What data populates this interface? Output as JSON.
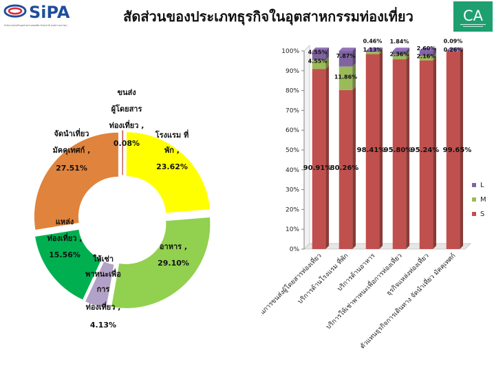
{
  "header": {
    "title": "สัดส่วนของประเภทธุรกิจในอุตสาหกรรมท่องเที่ยว",
    "logo_left_text": "SiPA",
    "logo_left_subtext": "สำนักงานส่งเสริมอุตสาหกรรมซอฟต์แวร์แห่งชาติ (องค์การมหาชน)",
    "logo_right_text": "CA"
  },
  "chart_data": [
    {
      "type": "pie",
      "variant": "donut-exploded",
      "title": "",
      "slices": [
        {
          "label": "โรงแรม ที่พัก",
          "value": 23.62,
          "value_label": "23.62%",
          "color": "#ffff00"
        },
        {
          "label": "อาหาร",
          "value": 29.1,
          "value_label": "29.10%",
          "color": "#92d050"
        },
        {
          "label": "ให้เช่าพาหนะเพื่อการท่องเที่ยว",
          "value": 4.13,
          "value_label": "4.13%",
          "color": "#b3a2c7"
        },
        {
          "label": "แหล่งท่องเที่ยว",
          "value": 15.56,
          "value_label": "15.56%",
          "color": "#00b050"
        },
        {
          "label": "จัดนำเที่ยว มัคคุเทศก์",
          "value": 27.51,
          "value_label": "27.51%",
          "color": "#e0833c"
        },
        {
          "label": "ขนส่งผู้โดยสารท่องเที่ยว",
          "value": 0.08,
          "value_label": "0.08%",
          "color": "#c0504d"
        }
      ]
    },
    {
      "type": "bar",
      "variant": "stacked-100-3d",
      "title": "",
      "categories": [
        "บริการด้านการขนส่งผู้โดยสารท่องเที่ยว",
        "บริการด้านโรงแรม ที่พัก",
        "บริการด้านอาหาร",
        "บริการให้เช่าพาหนะเพื่อการท่องเที่ยว",
        "ธุรกิจแหล่งท่องเที่ยว",
        "ตัวแทนธุรกิจการเดินทาง จัดนำเที่ยว มัคคุเทศก์"
      ],
      "series": [
        {
          "name": "S",
          "color": "#c0504d",
          "values": [
            90.91,
            80.26,
            98.41,
            95.8,
            95.24,
            99.65
          ],
          "labels": [
            "90.91%",
            "80.26%",
            "98.41%",
            "95.80%",
            "95.24%",
            "99.65%"
          ]
        },
        {
          "name": "M",
          "color": "#9bbb59",
          "values": [
            4.55,
            11.86,
            1.13,
            2.36,
            2.16,
            0.26
          ],
          "labels": [
            "4.55%",
            "11.86%",
            "1.13%",
            "2.36%",
            "2.16%",
            "0.26%"
          ]
        },
        {
          "name": "L",
          "color": "#8064a2",
          "values": [
            4.55,
            7.87,
            0.46,
            1.84,
            2.6,
            0.09
          ],
          "labels": [
            "4.55%",
            "7.87%",
            "0.46%",
            "1.84%",
            "2.60%",
            "0.09%"
          ]
        }
      ],
      "yticks": [
        "0%",
        "10%",
        "20%",
        "30%",
        "40%",
        "50%",
        "60%",
        "70%",
        "80%",
        "90%",
        "100%"
      ],
      "ylim": [
        0,
        100
      ],
      "legend_position": "right",
      "grid": false
    }
  ]
}
